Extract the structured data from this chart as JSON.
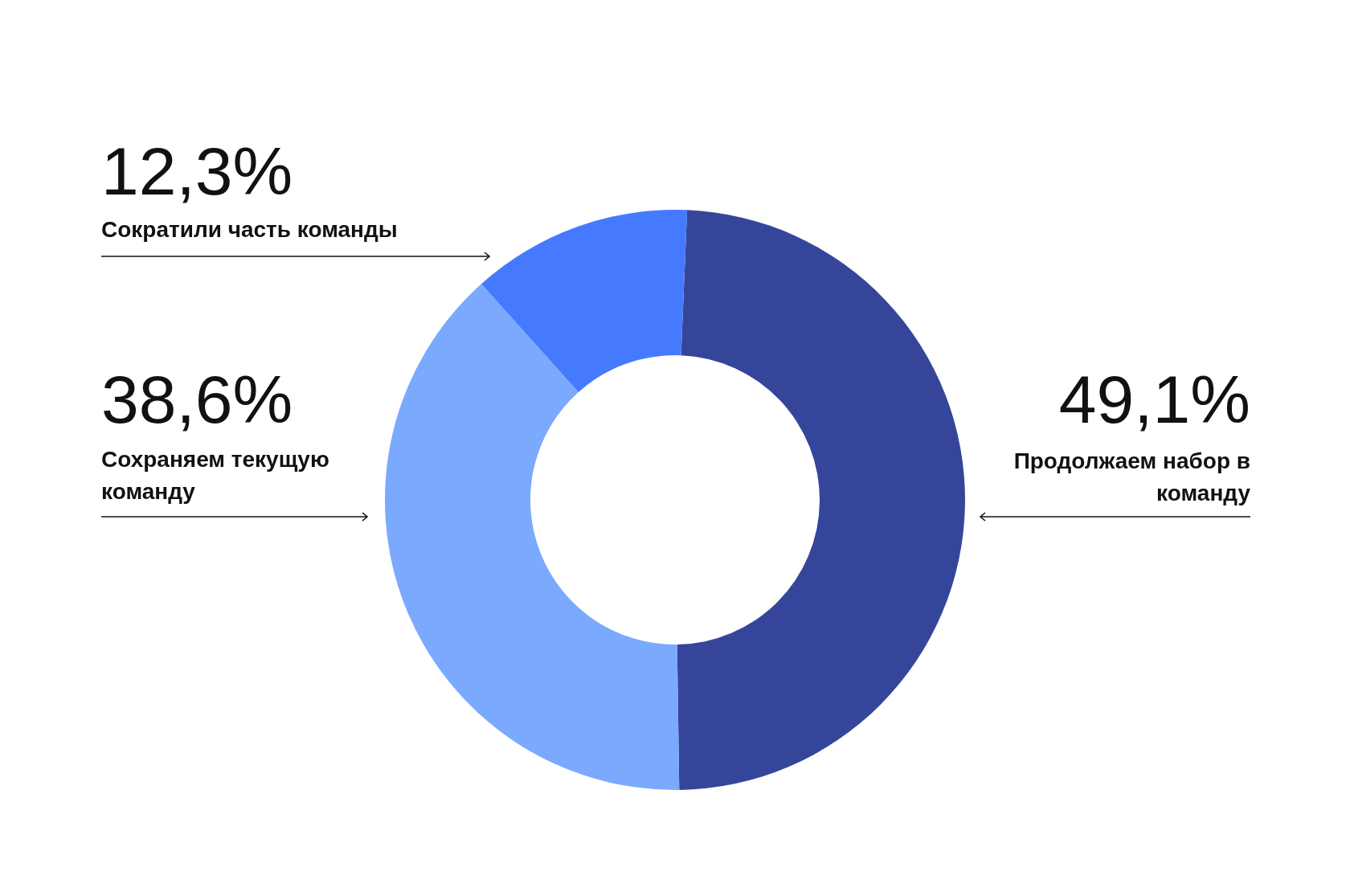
{
  "chart_data": {
    "type": "donut",
    "categories": [
      "Продолжаем набор в команду",
      "Сохраняем текущую команду",
      "Сократили часть команды"
    ],
    "values": [
      49.1,
      38.6,
      12.3
    ],
    "value_labels": [
      "49,1%",
      "38,6%",
      "12,3%"
    ],
    "colors": [
      "#35469a",
      "#7aa9fe",
      "#467afe"
    ],
    "legend": false
  }
}
